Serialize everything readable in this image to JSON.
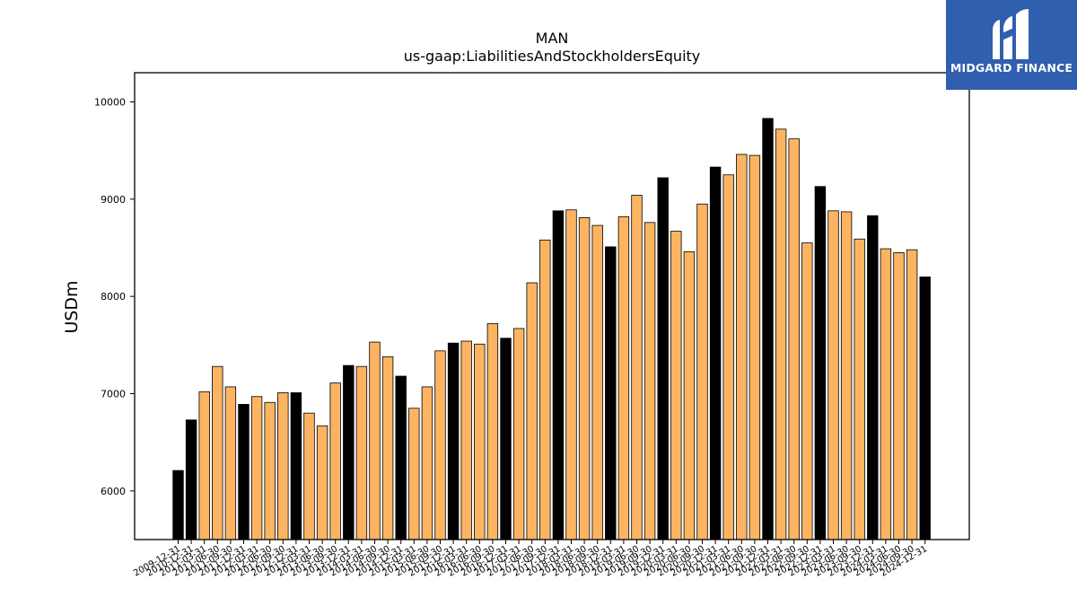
{
  "chart_data": {
    "type": "bar",
    "title": "MAN",
    "subtitle": "us-gaap:LiabilitiesAndStockholdersEquity",
    "ylabel": "USDm",
    "xlabel": "",
    "ylim": [
      5500,
      10300
    ],
    "yticks": [
      6000,
      7000,
      8000,
      9000,
      10000
    ],
    "grid": false,
    "colors": {
      "annual": "#000000",
      "quarterly": "#fdb462",
      "edge": "#000000"
    },
    "categories": [
      "2009-12-31",
      "2010-12-31",
      "2011-03-31",
      "2011-06-30",
      "2011-09-30",
      "2011-12-31",
      "2012-03-31",
      "2012-06-30",
      "2012-09-30",
      "2012-12-31",
      "2013-03-31",
      "2013-06-30",
      "2013-09-30",
      "2013-12-31",
      "2014-03-31",
      "2014-06-30",
      "2014-09-30",
      "2014-12-31",
      "2015-03-31",
      "2015-06-30",
      "2015-09-30",
      "2015-12-31",
      "2016-03-31",
      "2016-06-30",
      "2016-09-30",
      "2016-12-31",
      "2017-03-31",
      "2017-06-30",
      "2017-09-30",
      "2017-12-31",
      "2018-03-31",
      "2018-06-30",
      "2018-09-30",
      "2018-12-31",
      "2019-03-31",
      "2019-06-30",
      "2019-09-30",
      "2019-12-31",
      "2020-03-31",
      "2020-06-30",
      "2020-09-30",
      "2020-12-31",
      "2021-03-31",
      "2021-06-30",
      "2021-09-30",
      "2021-12-31",
      "2022-03-31",
      "2022-06-30",
      "2022-09-30",
      "2022-12-31",
      "2023-03-31",
      "2023-06-30",
      "2023-09-30",
      "2023-12-31",
      "2024-03-31",
      "2024-06-30",
      "2024-09-30",
      "2024-12-31"
    ],
    "values": [
      6210,
      6730,
      7020,
      7280,
      7070,
      6890,
      6970,
      6910,
      7010,
      7010,
      6800,
      6670,
      7110,
      7290,
      7280,
      7530,
      7380,
      7180,
      6850,
      7070,
      7440,
      7520,
      7540,
      7510,
      7720,
      7570,
      7670,
      8140,
      8580,
      8880,
      8890,
      8810,
      8730,
      8510,
      8820,
      9040,
      8760,
      9220,
      8670,
      8460,
      8950,
      9330,
      9250,
      9460,
      9450,
      9830,
      9720,
      9620,
      8550,
      9130,
      8880,
      8870,
      8590,
      8830,
      8490,
      8450,
      8480,
      8200
    ],
    "annual": [
      true,
      true,
      false,
      false,
      false,
      true,
      false,
      false,
      false,
      true,
      false,
      false,
      false,
      true,
      false,
      false,
      false,
      true,
      false,
      false,
      false,
      true,
      false,
      false,
      false,
      true,
      false,
      false,
      false,
      true,
      false,
      false,
      false,
      true,
      false,
      false,
      false,
      true,
      false,
      false,
      false,
      true,
      false,
      false,
      false,
      true,
      false,
      false,
      false,
      true,
      false,
      false,
      false,
      true,
      false,
      false,
      false,
      true
    ]
  },
  "logo": {
    "text": "MIDGARD FINANCE",
    "icon": "midgard-m-icon",
    "background": "#2f5fae"
  }
}
